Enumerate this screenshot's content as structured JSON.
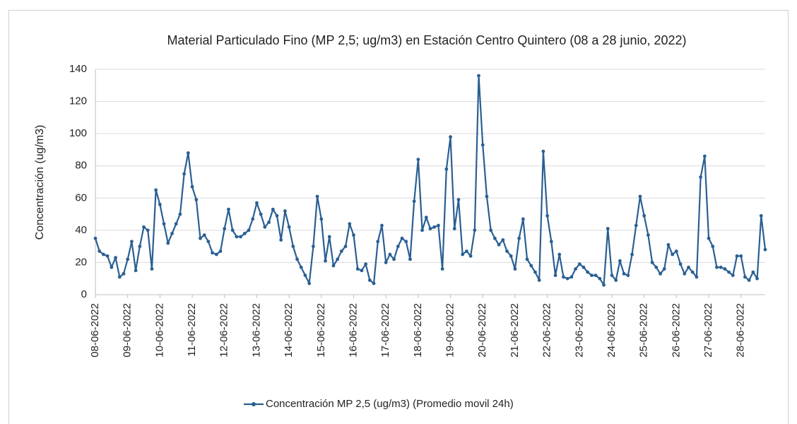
{
  "chart_data": {
    "type": "line",
    "title": "Material Particulado Fino (MP 2,5; ug/m3) en Estación Centro Quintero (08 a 28 junio, 2022)",
    "y_label": "Concentración (ug/m3)",
    "ylim": [
      0,
      140
    ],
    "yticks": [
      0,
      20,
      40,
      60,
      80,
      100,
      120,
      140
    ],
    "grid": true,
    "legend": "bottom",
    "categories": [
      "08-06-2022",
      null,
      null,
      null,
      null,
      null,
      null,
      null,
      "09-06-2022",
      null,
      null,
      null,
      null,
      null,
      null,
      null,
      "10-06-2022",
      null,
      null,
      null,
      null,
      null,
      null,
      null,
      "11-06-2022",
      null,
      null,
      null,
      null,
      null,
      null,
      null,
      "12-06-2022",
      null,
      null,
      null,
      null,
      null,
      null,
      null,
      "13-06-2022",
      null,
      null,
      null,
      null,
      null,
      null,
      null,
      "14-06-2022",
      null,
      null,
      null,
      null,
      null,
      null,
      null,
      "15-06-2022",
      null,
      null,
      null,
      null,
      null,
      null,
      null,
      "16-06-2022",
      null,
      null,
      null,
      null,
      null,
      null,
      null,
      "17-06-2022",
      null,
      null,
      null,
      null,
      null,
      null,
      null,
      "18-06-2022",
      null,
      null,
      null,
      null,
      null,
      null,
      null,
      "19-06-2022",
      null,
      null,
      null,
      null,
      null,
      null,
      null,
      "20-06-2022",
      null,
      null,
      null,
      null,
      null,
      null,
      null,
      "21-06-2022",
      null,
      null,
      null,
      null,
      null,
      null,
      null,
      "22-06-2022",
      null,
      null,
      null,
      null,
      null,
      null,
      null,
      "23-06-2022",
      null,
      null,
      null,
      null,
      null,
      null,
      null,
      "24-06-2022",
      null,
      null,
      null,
      null,
      null,
      null,
      null,
      "25-06-2022",
      null,
      null,
      null,
      null,
      null,
      null,
      null,
      "26-06-2022",
      null,
      null,
      null,
      null,
      null,
      null,
      null,
      "27-06-2022",
      null,
      null,
      null,
      null,
      null,
      null,
      null,
      "28-06-2022",
      null,
      null,
      null,
      null,
      null,
      null
    ],
    "series": [
      {
        "name": "Concentración MP 2,5 (ug/m3) (Promedio movil 24h)",
        "color": "#2a5f93",
        "values": [
          35,
          27,
          25,
          24,
          17,
          23,
          11,
          13,
          22,
          33,
          15,
          30,
          42,
          40,
          16,
          65,
          56,
          44,
          32,
          38,
          44,
          50,
          75,
          88,
          67,
          59,
          35,
          37,
          33,
          26,
          25,
          27,
          41,
          53,
          40,
          36,
          36,
          38,
          40,
          47,
          57,
          50,
          42,
          45,
          53,
          49,
          34,
          52,
          42,
          30,
          22,
          17,
          12,
          7,
          30,
          61,
          47,
          21,
          36,
          18,
          22,
          27,
          30,
          44,
          37,
          16,
          15,
          19,
          9,
          7,
          33,
          43,
          20,
          25,
          22,
          30,
          35,
          33,
          22,
          58,
          84,
          40,
          48,
          41,
          42,
          43,
          16,
          78,
          98,
          41,
          59,
          25,
          27,
          24,
          40,
          136,
          93,
          61,
          40,
          35,
          31,
          34,
          27,
          24,
          16,
          35,
          47,
          22,
          18,
          14,
          9,
          89,
          49,
          33,
          12,
          25,
          11,
          10,
          11,
          16,
          19,
          17,
          14,
          12,
          12,
          10,
          6,
          41,
          12,
          9,
          21,
          13,
          12,
          25,
          43,
          61,
          49,
          37,
          20,
          17,
          13,
          16,
          31,
          25,
          27,
          19,
          13,
          17,
          14,
          11,
          73,
          86,
          35,
          30,
          17,
          17,
          16,
          14,
          12,
          24,
          24,
          11,
          9,
          14,
          10,
          49,
          28
        ]
      }
    ]
  }
}
